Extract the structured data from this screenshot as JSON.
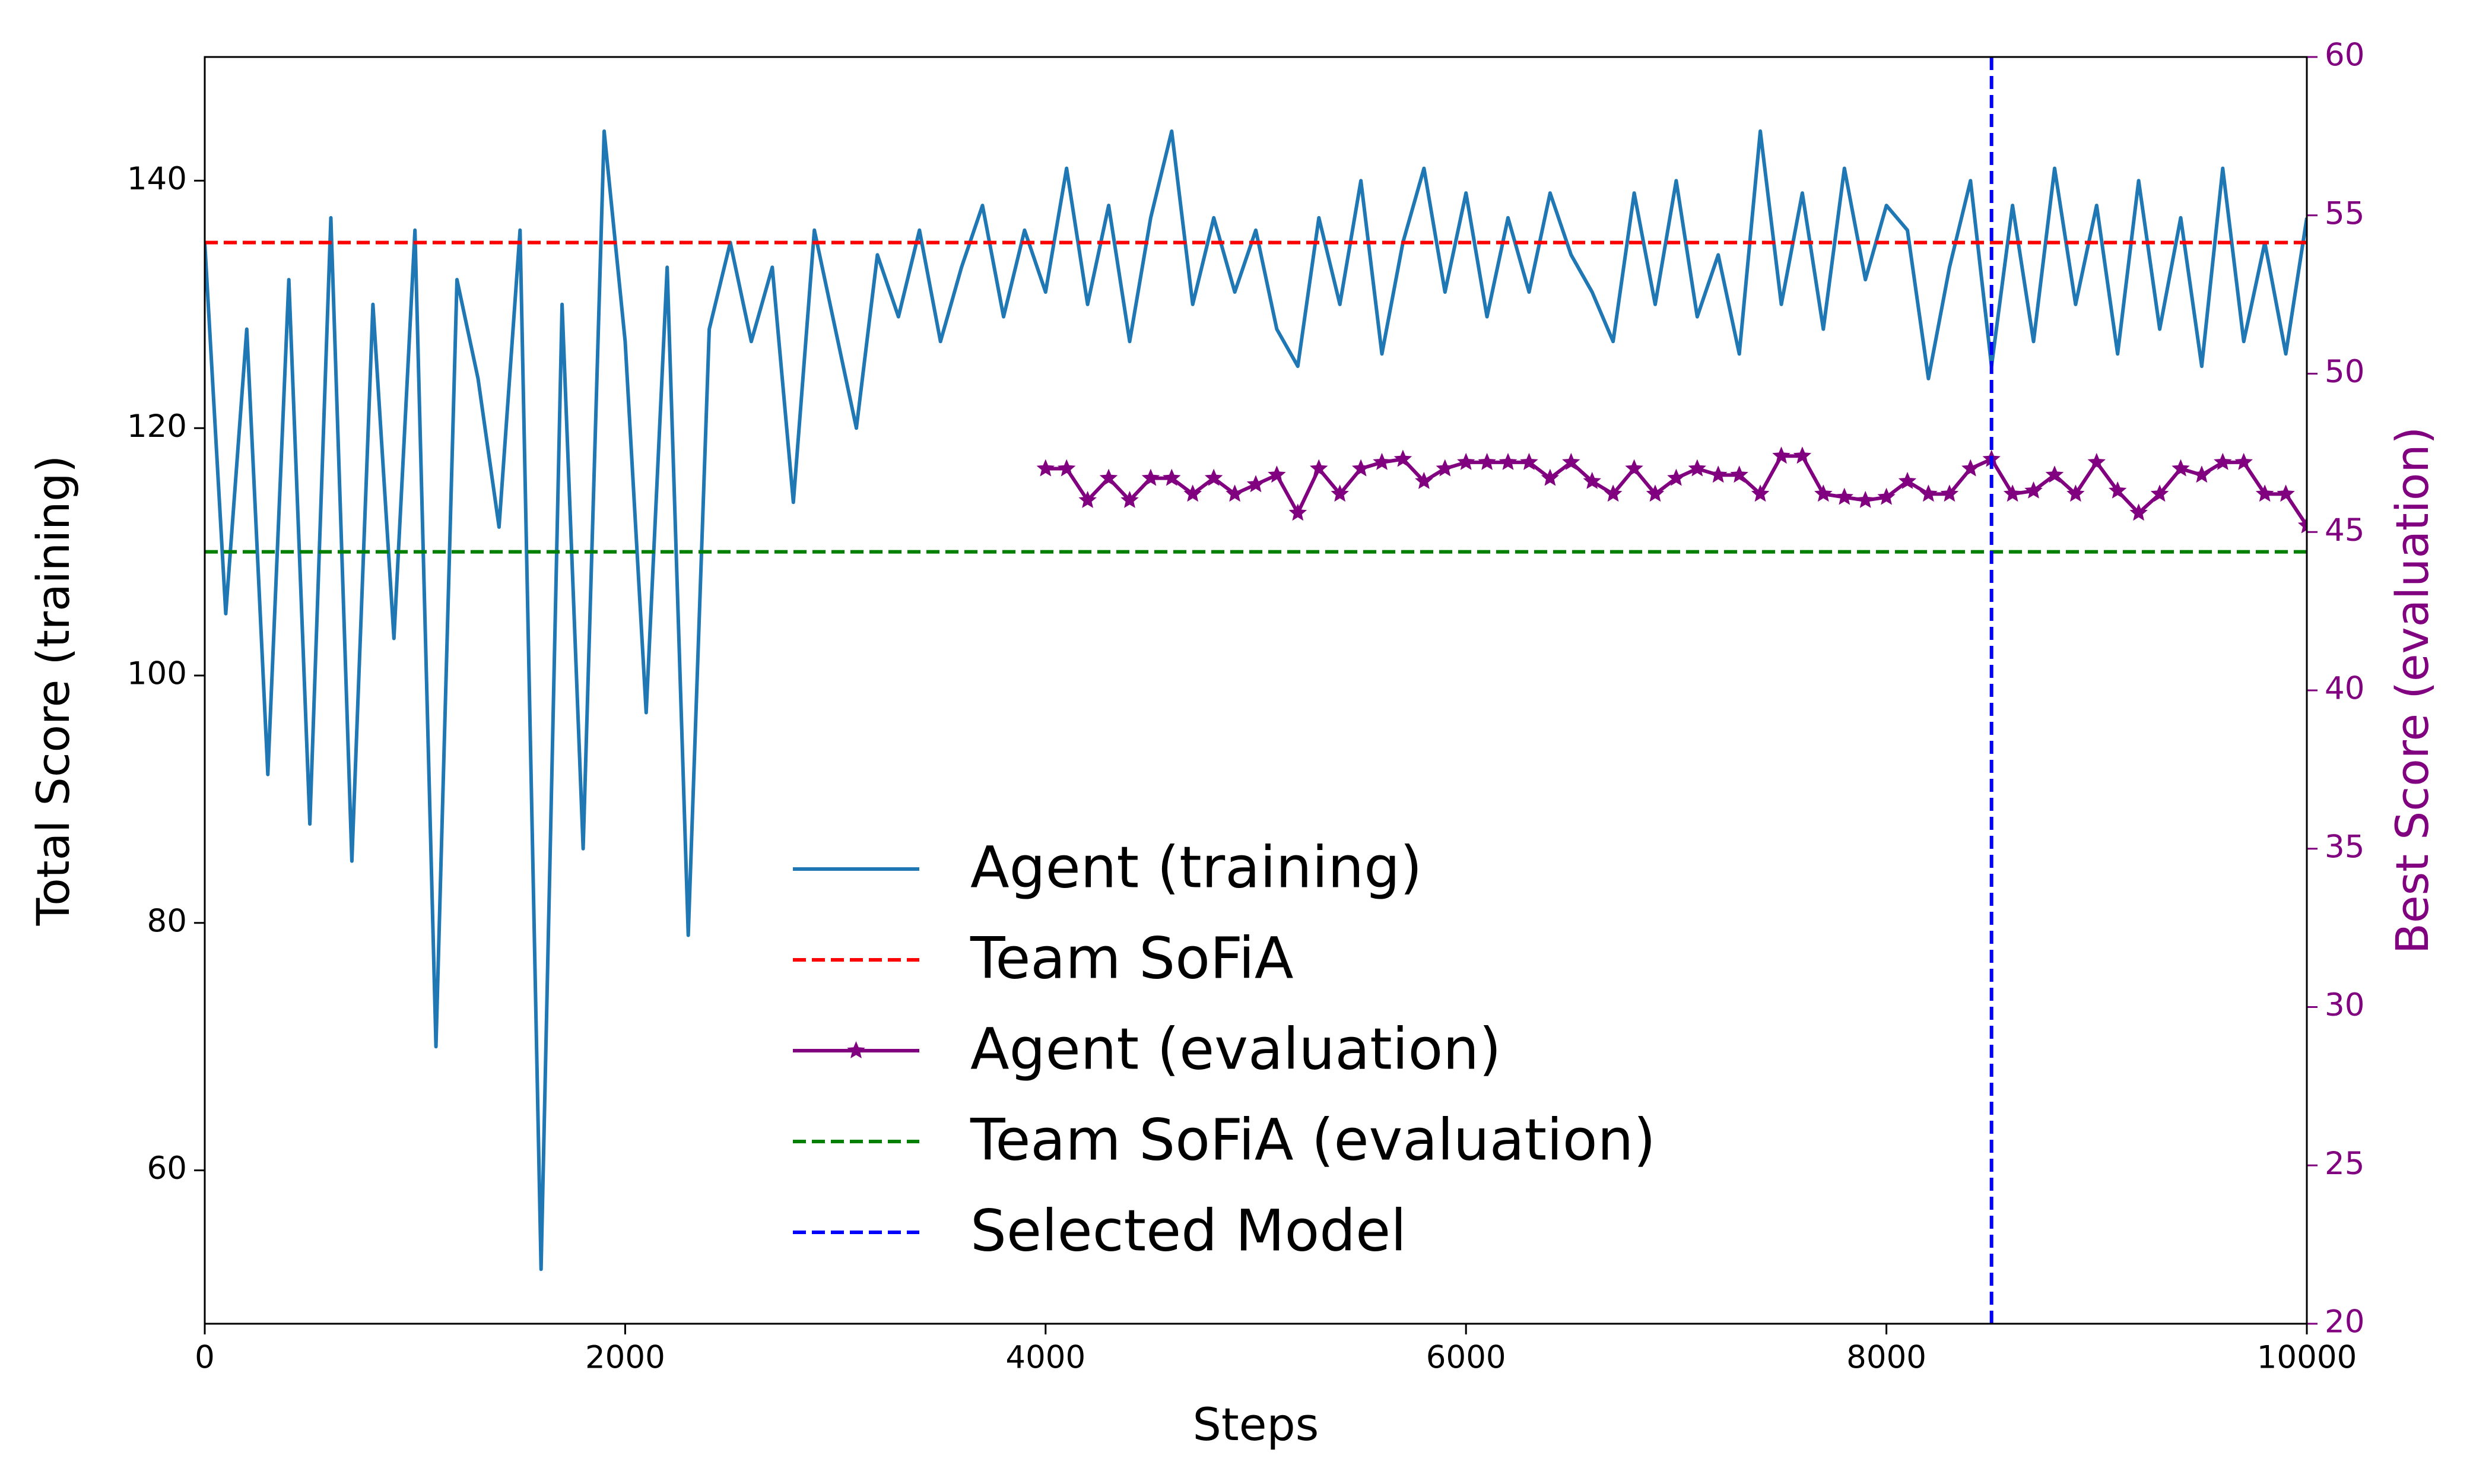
{
  "chart_data": {
    "type": "line",
    "xlabel": "Steps",
    "ylabel": "Total Score (training)",
    "y2label": "Best Score (evaluation)",
    "y2color": "#800080",
    "xlim": [
      0,
      10000
    ],
    "xticks": [
      0,
      2000,
      4000,
      6000,
      8000,
      10000
    ],
    "ylim": [
      47.6,
      150
    ],
    "yticks": [
      60,
      80,
      100,
      120,
      140
    ],
    "y2lim": [
      20,
      60
    ],
    "y2ticks": [
      20,
      25,
      30,
      35,
      40,
      45,
      50,
      55,
      60
    ],
    "grid": false,
    "legend": "lower center",
    "series": [
      {
        "name": "Agent (training)",
        "color": "#1f77b4",
        "x": [
          0,
          100,
          200,
          300,
          400,
          500,
          600,
          700,
          800,
          900,
          1000,
          1100,
          1200,
          1300,
          1400,
          1500,
          1600,
          1700,
          1800,
          1900,
          2000,
          2100,
          2200,
          2300,
          2400,
          2500,
          2600,
          2700,
          2800,
          2900,
          3000,
          3100,
          3200,
          3300,
          3400,
          3500,
          3600,
          3700,
          3800,
          3900,
          4000,
          4100,
          4200,
          4300,
          4400,
          4500,
          4600,
          4700,
          4800,
          4900,
          5000,
          5100,
          5200,
          5300,
          5400,
          5500,
          5600,
          5700,
          5800,
          5900,
          6000,
          6100,
          6200,
          6300,
          6400,
          6500,
          6600,
          6700,
          6800,
          6900,
          7000,
          7100,
          7200,
          7300,
          7400,
          7500,
          7600,
          7700,
          7800,
          7900,
          8000,
          8100,
          8200,
          8300,
          8400,
          8500,
          8600,
          8700,
          8800,
          8900,
          9000,
          9100,
          9200,
          9300,
          9400,
          9500,
          9600,
          9700,
          9800,
          9900,
          10000
        ],
        "values": [
          135,
          105,
          128,
          92,
          132,
          88,
          137,
          85,
          130,
          103,
          136,
          70,
          132,
          124,
          112,
          136,
          52,
          130,
          86,
          144,
          127,
          97,
          133,
          79,
          128,
          135,
          127,
          133,
          114,
          136,
          128,
          120,
          134,
          129,
          136,
          127,
          133,
          138,
          129,
          136,
          131,
          141,
          130,
          138,
          127,
          137,
          144,
          130,
          137,
          131,
          136,
          128,
          125,
          137,
          130,
          140,
          126,
          135,
          141,
          131,
          139,
          129,
          137,
          131,
          139,
          134,
          131,
          127,
          139,
          130,
          140,
          129,
          134,
          126,
          144,
          130,
          139,
          128,
          141,
          132,
          138,
          136,
          124,
          133,
          140,
          125,
          138,
          127,
          141,
          130,
          138,
          126,
          140,
          128,
          137,
          125,
          141,
          127,
          135,
          126,
          137
        ]
      },
      {
        "name": "Agent (evaluation)",
        "color": "#800080",
        "axis": "y2",
        "marker": "star",
        "x": [
          4000,
          4100,
          4200,
          4300,
          4400,
          4500,
          4600,
          4700,
          4800,
          4900,
          5000,
          5100,
          5200,
          5300,
          5400,
          5500,
          5600,
          5700,
          5800,
          5900,
          6000,
          6100,
          6200,
          6300,
          6400,
          6500,
          6600,
          6700,
          6800,
          6900,
          7000,
          7100,
          7200,
          7300,
          7400,
          7500,
          7600,
          7700,
          7800,
          7900,
          8000,
          8100,
          8200,
          8300,
          8400,
          8500,
          8600,
          8700,
          8800,
          8900,
          9000,
          9100,
          9200,
          9300,
          9400,
          9500,
          9600,
          9700,
          9800,
          9900,
          10000
        ],
        "values": [
          47,
          47,
          46,
          46.7,
          46,
          46.7,
          46.7,
          46.2,
          46.7,
          46.2,
          46.5,
          46.8,
          45.6,
          47,
          46.2,
          47,
          47.2,
          47.3,
          46.6,
          47,
          47.2,
          47.2,
          47.2,
          47.2,
          46.7,
          47.2,
          46.6,
          46.2,
          47,
          46.2,
          46.7,
          47,
          46.8,
          46.8,
          46.2,
          47.4,
          47.4,
          46.2,
          46.1,
          46,
          46.1,
          46.6,
          46.2,
          46.2,
          47,
          47.3,
          46.2,
          46.3,
          46.8,
          46.2,
          47.2,
          46.3,
          45.6,
          46.2,
          47,
          46.8,
          47.2,
          47.2,
          46.2,
          46.2,
          45.2
        ]
      }
    ],
    "reference_lines": [
      {
        "name": "Team SoFiA",
        "color": "#ff0000",
        "y": 135
      },
      {
        "name": "Team SoFiA (evaluation)",
        "color": "#008000",
        "y": 110
      }
    ],
    "vline": {
      "name": "Selected Model",
      "color": "#0000ff",
      "x": 8500
    }
  }
}
